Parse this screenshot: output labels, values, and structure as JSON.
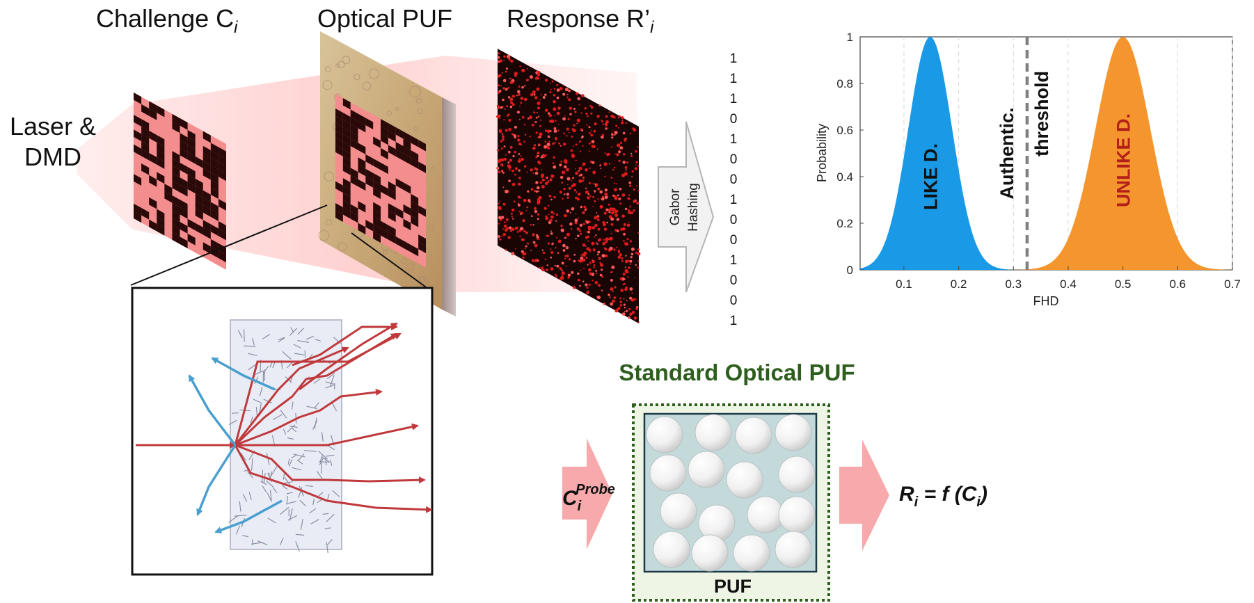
{
  "top_labels": {
    "challenge": "Challenge C",
    "challenge_sub": "i",
    "puf": "Optical PUF",
    "response": "Response R’",
    "response_sub": "i",
    "laser_line1": "Laser &",
    "laser_line2": "DMD"
  },
  "hashing": {
    "line1": "Gabor",
    "line2": "Hashing",
    "bits": [
      "1",
      "1",
      "1",
      "0",
      "1",
      "0",
      "0",
      "1",
      "0",
      "0",
      "1",
      "0",
      "0",
      "1"
    ]
  },
  "chart_data": {
    "type": "area",
    "x_label": "FHD",
    "y_label": "Probability",
    "xlim": [
      0.02,
      0.7
    ],
    "ylim": [
      0,
      1
    ],
    "x_ticks": [
      "0.1",
      "0.2",
      "0.3",
      "0.4",
      "0.5",
      "0.6",
      "0.7"
    ],
    "y_ticks": [
      "0",
      "0.2",
      "0.4",
      "0.6",
      "0.8",
      "1"
    ],
    "grid": "vertical dashed",
    "threshold": {
      "x": 0.325,
      "label_line1": "Authentic.",
      "label_line2": "threshold"
    },
    "series": [
      {
        "name": "LIKE D.",
        "color": "#1a9ae6",
        "text_color": "#111111",
        "mean": 0.148,
        "sd": 0.04,
        "peak": 1
      },
      {
        "name": "UNLIKE D.",
        "color": "#f4962d",
        "text_color": "#b3201a",
        "mean": 0.5,
        "sd": 0.05,
        "peak": 1
      }
    ]
  },
  "standard_puf": {
    "title": "Standard Optical PUF",
    "box_label": "PUF",
    "input_label": "C",
    "input_sub": "i",
    "input_sup": "Probe",
    "output_label": "R",
    "output_sub": "i",
    "output_rest": " = f (C",
    "output_sub2": "i",
    "output_close": ")"
  },
  "colors": {
    "red_ray": "#c0393c",
    "blue_ray": "#4a9fd0",
    "puf_green": "#2e5e1e",
    "arrow_pink": "#f8a9ab"
  }
}
